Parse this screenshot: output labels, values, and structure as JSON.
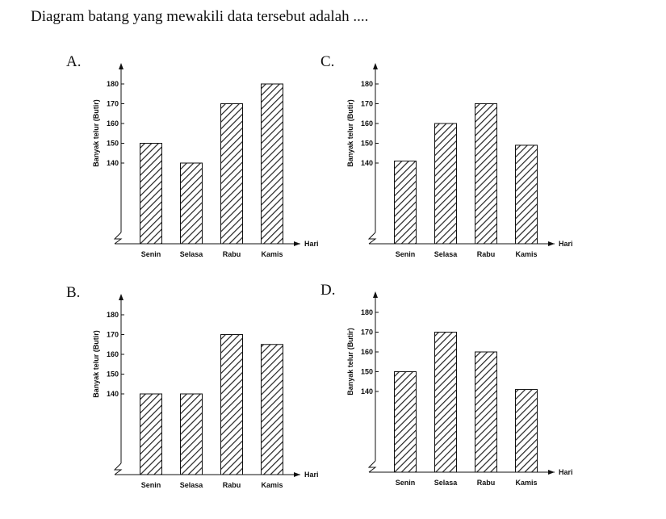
{
  "question": "Diagram batang yang mewakili data tersebut adalah ....",
  "colors": {
    "ink": "#111111",
    "hatch": "#222222",
    "paper": "#ffffff"
  },
  "chart_data": [
    {
      "option": "A.",
      "type": "bar",
      "categories": [
        "Senin",
        "Selasa",
        "Rabu",
        "Kamis"
      ],
      "values": [
        150,
        140,
        170,
        180
      ],
      "yticks": [
        140,
        150,
        160,
        170,
        180
      ],
      "ylabel": "Banyak telur (Butir)",
      "xlabel": "Hari",
      "broken_axis": true
    },
    {
      "option": "C.",
      "type": "bar",
      "categories": [
        "Senin",
        "Selasa",
        "Rabu",
        "Kamis"
      ],
      "values": [
        141,
        160,
        170,
        149
      ],
      "yticks": [
        140,
        150,
        160,
        170,
        180
      ],
      "ylabel": "Banyak telur (Butir)",
      "xlabel": "Hari",
      "broken_axis": true
    },
    {
      "option": "B.",
      "type": "bar",
      "categories": [
        "Senin",
        "Selasa",
        "Rabu",
        "Kamis"
      ],
      "values": [
        140,
        140,
        170,
        165
      ],
      "yticks": [
        140,
        150,
        160,
        170,
        180
      ],
      "ylabel": "Banyak telur (Butir)",
      "xlabel": "Hari",
      "broken_axis": true
    },
    {
      "option": "D.",
      "type": "bar",
      "categories": [
        "Senin",
        "Selasa",
        "Rabu",
        "Kamis"
      ],
      "values": [
        150,
        170,
        160,
        141
      ],
      "yticks": [
        140,
        150,
        160,
        170,
        180
      ],
      "ylabel": "Banyak telur (Butir)",
      "xlabel": "Hari",
      "broken_axis": true
    }
  ]
}
